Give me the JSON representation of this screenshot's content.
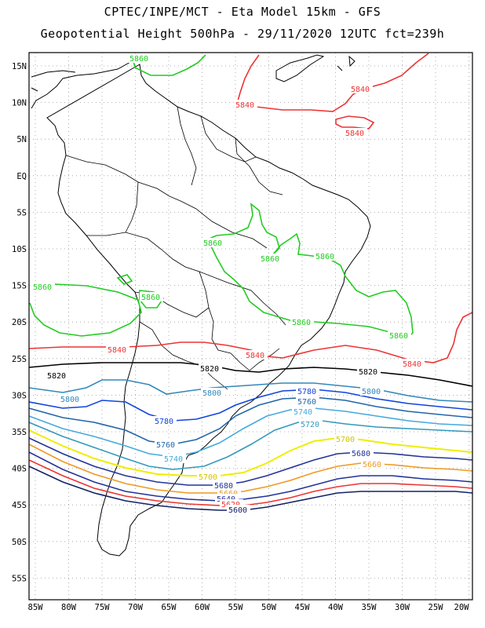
{
  "title_line1": "CPTEC/INPE/MCT -  Eta Model 15km - GFS",
  "title_line2": "Geopotential Height 500hPa - 29/11/2020 12UTC fct=239h",
  "map": {
    "lat_labels": [
      "15N",
      "10N",
      "5N",
      "EQ",
      "5S",
      "10S",
      "15S",
      "20S",
      "25S",
      "30S",
      "35S",
      "40S",
      "45S",
      "50S",
      "55S"
    ],
    "lon_labels": [
      "85W",
      "80W",
      "75W",
      "70W",
      "65W",
      "60W",
      "55W",
      "50W",
      "45W",
      "40W",
      "35W",
      "30W",
      "25W",
      "20W"
    ],
    "lon_range": [
      -86,
      -20
    ],
    "lat_range": [
      -58,
      17
    ],
    "grid": "dotted",
    "contour_colors": {
      "5860": "#22cc22",
      "5840": "#ee3333",
      "5820": "#000000",
      "5800": "#3388bb",
      "5780": "#1144dd",
      "5760": "#2266aa",
      "5740": "#44aadd",
      "5720": "#3399bb",
      "5700": "#eeee00",
      "5680": "#223399",
      "5660": "#ee9922",
      "5640": "#223399",
      "5620": "#ee3333",
      "5600": "#112266"
    },
    "contour_labels": [
      "5860",
      "5840",
      "5820",
      "5800",
      "5780",
      "5760",
      "5740",
      "5720",
      "5700",
      "5680",
      "5660",
      "5640",
      "5620",
      "5600"
    ]
  }
}
